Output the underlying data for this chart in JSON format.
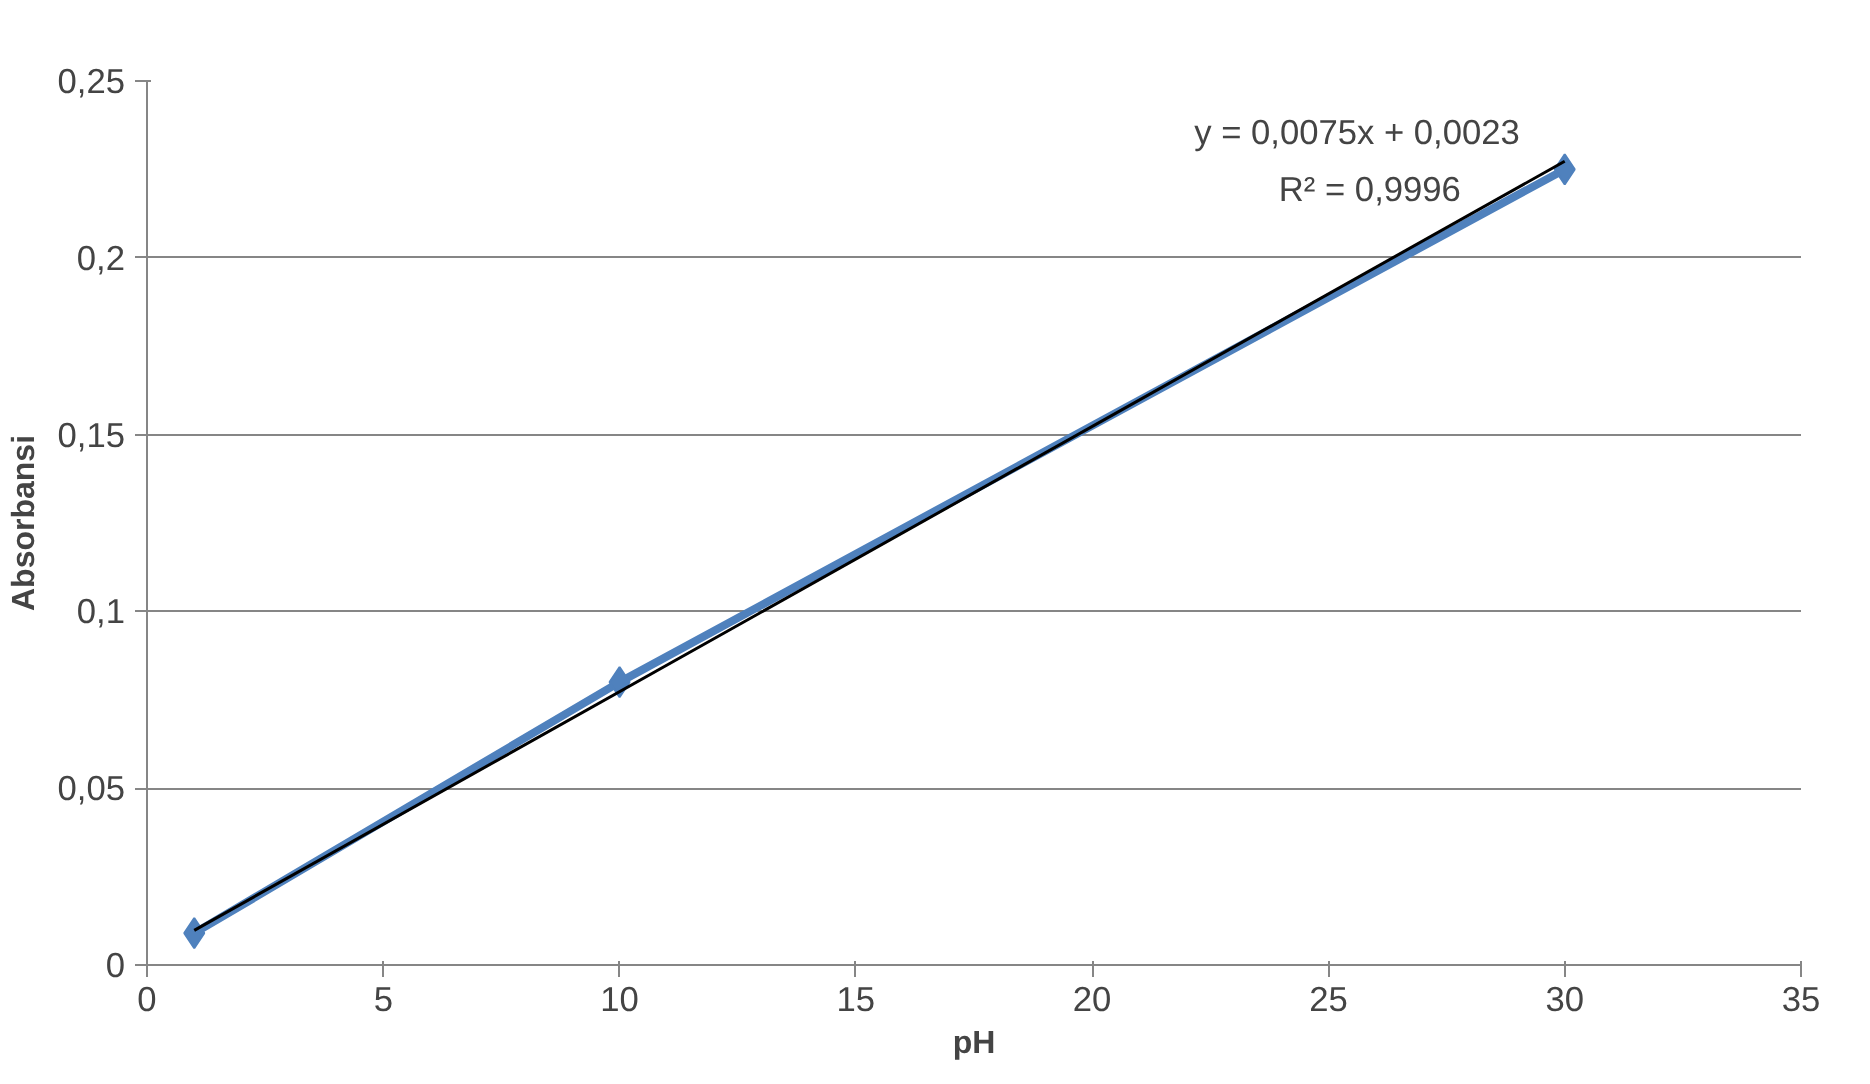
{
  "chart_data": {
    "type": "line",
    "xlabel": "pH",
    "ylabel": "Absorbansi",
    "series": [
      {
        "color": "#4f81bd",
        "x": [
          1,
          10,
          30
        ],
        "values": [
          0.009,
          0.08,
          0.225
        ],
        "marker": "diamond"
      },
      {
        "type": "line",
        "color": "#000000",
        "x": [
          1,
          30
        ],
        "values": [
          0.0098,
          0.2273
        ],
        "marker": "none"
      }
    ],
    "annotations": [
      "y = 0,0075x + 0,0023",
      "R² = 0,9996"
    ],
    "xlim": [
      0,
      35
    ],
    "xticks": [
      0,
      5,
      10,
      15,
      20,
      25,
      30,
      35
    ],
    "ylim": [
      0,
      0.25
    ],
    "yticks": [
      0,
      {
        "value": 0.05,
        "label": "0,05"
      },
      {
        "value": 0.1,
        "label": "0,1"
      },
      {
        "value": 0.15,
        "label": "0,15"
      },
      {
        "value": 0.2,
        "label": "0,2"
      },
      {
        "value": 0.25,
        "label": "0,25"
      }
    ],
    "grid": "y",
    "line_style": "solid"
  }
}
